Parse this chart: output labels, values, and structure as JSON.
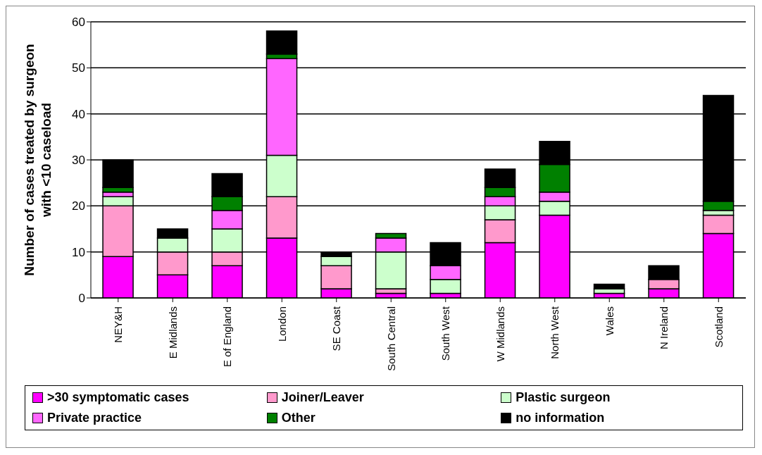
{
  "chart_data": {
    "type": "bar",
    "stacked": true,
    "ylabel": "Number of cases treated by surgeon with <10 caseload",
    "categories": [
      "NEY&H",
      "E Midlands",
      "E of England",
      "London",
      "SE Coast",
      "South Central",
      "South West",
      "W Midlands",
      "North West",
      "Wales",
      "N Ireland",
      "Scotland"
    ],
    "series": [
      {
        "name": ">30 symptomatic cases",
        "color": "#ff00ff",
        "values": [
          9,
          5,
          7,
          13,
          2,
          1,
          1,
          12,
          18,
          1,
          2,
          14
        ]
      },
      {
        "name": "Joiner/Leaver",
        "color": "#ff99cc",
        "values": [
          11,
          5,
          3,
          9,
          5,
          1,
          0,
          5,
          0,
          0,
          2,
          4
        ]
      },
      {
        "name": "Plastic surgeon",
        "color": "#ccffcc",
        "values": [
          2,
          3,
          5,
          9,
          2,
          8,
          3,
          3,
          3,
          1,
          0,
          1
        ]
      },
      {
        "name": "Private practice",
        "color": "#ff66ff",
        "values": [
          1,
          0,
          4,
          21,
          0,
          3,
          3,
          2,
          2,
          0,
          0,
          0
        ]
      },
      {
        "name": "Other",
        "color": "#008000",
        "values": [
          1,
          0,
          3,
          1,
          0,
          1,
          0,
          2,
          6,
          0,
          0,
          2
        ]
      },
      {
        "name": "no information",
        "color": "#000000",
        "values": [
          6,
          2,
          5,
          5,
          1,
          0,
          5,
          4,
          5,
          1,
          3,
          23
        ]
      }
    ],
    "ylim": [
      0,
      60
    ],
    "yticks": [
      0,
      10,
      20,
      30,
      40,
      50,
      60
    ],
    "grid": "y",
    "legend": "bottom"
  }
}
